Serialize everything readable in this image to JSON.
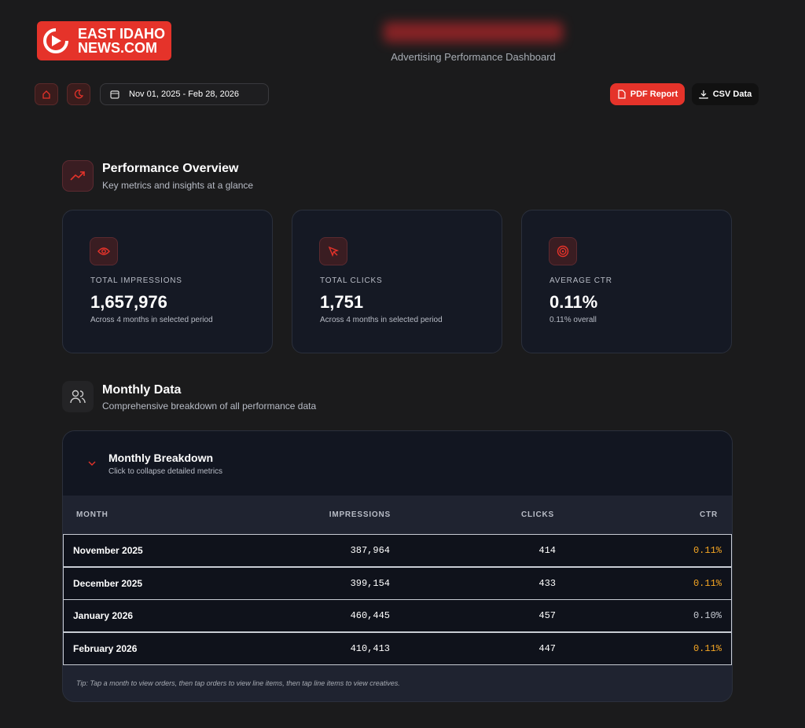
{
  "logo": {
    "line1": "EAST IDAHO",
    "line2": "NEWS.COM"
  },
  "header": {
    "subtitle": "Advertising Performance Dashboard"
  },
  "toolbar": {
    "date_range": "Nov 01, 2025 - Feb 28, 2026",
    "pdf_button": "PDF Report",
    "csv_button": "CSV Data"
  },
  "overview": {
    "title": "Performance Overview",
    "subtitle": "Key metrics and insights at a glance",
    "cards": [
      {
        "label": "TOTAL IMPRESSIONS",
        "value": "1,657,976",
        "note": "Across 4 months in selected period"
      },
      {
        "label": "TOTAL CLICKS",
        "value": "1,751",
        "note": "Across 4 months in selected period"
      },
      {
        "label": "AVERAGE CTR",
        "value": "0.11%",
        "note": "0.11% overall"
      }
    ]
  },
  "monthly": {
    "title": "Monthly Data",
    "subtitle": "Comprehensive breakdown of all performance data",
    "panel_title": "Monthly Breakdown",
    "panel_subtitle": "Click to collapse detailed metrics",
    "table": {
      "header": [
        "MONTH",
        "IMPRESSIONS",
        "CLICKS",
        "CTR"
      ],
      "rows": [
        [
          "November 2025",
          "387,964",
          "414",
          "0.11%"
        ],
        [
          "December 2025",
          "399,154",
          "433",
          "0.11%"
        ],
        [
          "January 2026",
          "460,445",
          "457",
          "0.10%"
        ],
        [
          "February 2026",
          "410,413",
          "447",
          "0.11%"
        ]
      ]
    },
    "tip": "Tip: Tap a month to view orders, then tap orders to view line items, then tap line items to view creatives."
  }
}
